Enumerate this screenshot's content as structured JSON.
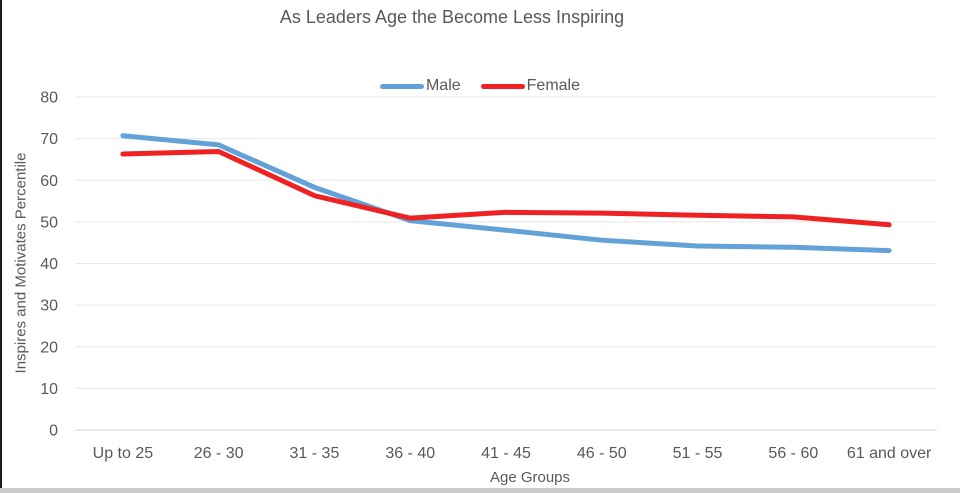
{
  "chart_data": {
    "type": "line",
    "title": "As Leaders Age the Become Less Inspiring",
    "categories": [
      "Up to 25",
      "26 - 30",
      "31 - 35",
      "36 - 40",
      "41 - 45",
      "46 - 50",
      "51 - 55",
      "56 - 60",
      "61 and over"
    ],
    "series": [
      {
        "name": "Male",
        "color": "#63A2D8",
        "values": [
          70.7,
          68.5,
          58.3,
          50.3,
          48.0,
          45.6,
          44.2,
          43.9,
          43.1
        ]
      },
      {
        "name": "Female",
        "color": "#EE2222",
        "values": [
          66.3,
          66.9,
          56.3,
          50.9,
          52.3,
          52.1,
          51.6,
          51.2,
          49.3
        ]
      }
    ],
    "xlabel": "Age Groups",
    "ylabel": "Inspires and Motivates Percentile",
    "ylim": [
      0,
      80
    ],
    "yticks": [
      0,
      10,
      20,
      30,
      40,
      50,
      60,
      70,
      80
    ],
    "grid": true,
    "legend_position": "top-center"
  },
  "colors": {
    "text": "#595959",
    "gridline": "#e8e8e8",
    "axis_line": "#d6d6d6",
    "male_line": "#63A2D8",
    "female_line": "#EE2222"
  }
}
